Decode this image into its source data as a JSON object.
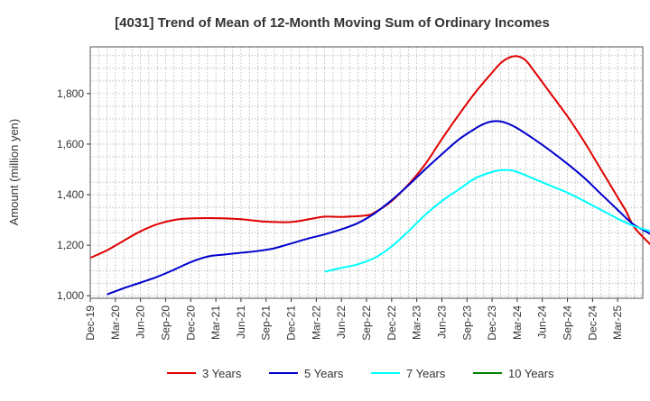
{
  "chart_data": {
    "type": "line",
    "title": "[4031]  Trend of Mean of 12-Month Moving Sum of Ordinary Incomes",
    "ylabel": "Amount (million yen)",
    "xlabel": "",
    "ylim": [
      990,
      1985
    ],
    "yticks": [
      1000,
      1200,
      1400,
      1600,
      1800
    ],
    "ytick_labels": [
      "1,000",
      "1,200",
      "1,400",
      "1,600",
      "1,800"
    ],
    "x_month_range": [
      0,
      66
    ],
    "xtick_labels": [
      "Dec-19",
      "Mar-20",
      "Jun-20",
      "Sep-20",
      "Dec-20",
      "Mar-21",
      "Jun-21",
      "Sep-21",
      "Dec-21",
      "Mar-22",
      "Jun-22",
      "Sep-22",
      "Dec-22",
      "Mar-23",
      "Jun-23",
      "Sep-23",
      "Dec-23",
      "Mar-24",
      "Jun-24",
      "Sep-24",
      "Dec-24",
      "Mar-25"
    ],
    "series": [
      {
        "name": "3 Years",
        "color": "#e00000",
        "points": [
          [
            0,
            1150
          ],
          [
            2,
            1180
          ],
          [
            4,
            1218
          ],
          [
            6,
            1255
          ],
          [
            8,
            1283
          ],
          [
            10,
            1300
          ],
          [
            12,
            1306
          ],
          [
            15,
            1307
          ],
          [
            18,
            1303
          ],
          [
            21,
            1293
          ],
          [
            24,
            1292
          ],
          [
            26,
            1302
          ],
          [
            28,
            1313
          ],
          [
            30,
            1312
          ],
          [
            33,
            1318
          ],
          [
            34,
            1330
          ],
          [
            36,
            1375
          ],
          [
            38,
            1440
          ],
          [
            40,
            1520
          ],
          [
            42,
            1620
          ],
          [
            44,
            1715
          ],
          [
            46,
            1805
          ],
          [
            48,
            1883
          ],
          [
            49,
            1920
          ],
          [
            50,
            1942
          ],
          [
            51,
            1948
          ],
          [
            52,
            1932
          ],
          [
            53,
            1890
          ],
          [
            55,
            1800
          ],
          [
            57,
            1710
          ],
          [
            59,
            1610
          ],
          [
            61,
            1500
          ],
          [
            63,
            1390
          ],
          [
            64,
            1335
          ],
          [
            65,
            1270
          ],
          [
            67,
            1200
          ]
        ]
      },
      {
        "name": "5 Years",
        "color": "#0000cc",
        "points": [
          [
            2,
            1005
          ],
          [
            4,
            1030
          ],
          [
            6,
            1052
          ],
          [
            8,
            1075
          ],
          [
            10,
            1103
          ],
          [
            12,
            1133
          ],
          [
            14,
            1155
          ],
          [
            16,
            1163
          ],
          [
            18,
            1170
          ],
          [
            20,
            1177
          ],
          [
            22,
            1188
          ],
          [
            24,
            1207
          ],
          [
            26,
            1226
          ],
          [
            28,
            1243
          ],
          [
            30,
            1263
          ],
          [
            32,
            1288
          ],
          [
            34,
            1327
          ],
          [
            36,
            1378
          ],
          [
            38,
            1437
          ],
          [
            40,
            1500
          ],
          [
            42,
            1560
          ],
          [
            44,
            1618
          ],
          [
            46,
            1662
          ],
          [
            47,
            1680
          ],
          [
            48,
            1690
          ],
          [
            49,
            1690
          ],
          [
            50,
            1680
          ],
          [
            51,
            1663
          ],
          [
            53,
            1620
          ],
          [
            55,
            1573
          ],
          [
            57,
            1522
          ],
          [
            59,
            1467
          ],
          [
            61,
            1403
          ],
          [
            63,
            1340
          ],
          [
            64,
            1308
          ],
          [
            65,
            1280
          ],
          [
            67,
            1243
          ]
        ]
      },
      {
        "name": "7 Years",
        "color": "#00ffff",
        "points": [
          [
            28,
            1095
          ],
          [
            30,
            1110
          ],
          [
            32,
            1125
          ],
          [
            34,
            1150
          ],
          [
            36,
            1195
          ],
          [
            38,
            1255
          ],
          [
            40,
            1320
          ],
          [
            42,
            1375
          ],
          [
            44,
            1420
          ],
          [
            46,
            1465
          ],
          [
            48,
            1490
          ],
          [
            49,
            1497
          ],
          [
            50,
            1497
          ],
          [
            51,
            1490
          ],
          [
            53,
            1463
          ],
          [
            55,
            1435
          ],
          [
            57,
            1408
          ],
          [
            59,
            1375
          ],
          [
            61,
            1340
          ],
          [
            63,
            1305
          ],
          [
            65,
            1275
          ],
          [
            67,
            1255
          ]
        ]
      },
      {
        "name": "10 Years",
        "color": "#008000",
        "points": []
      }
    ]
  }
}
